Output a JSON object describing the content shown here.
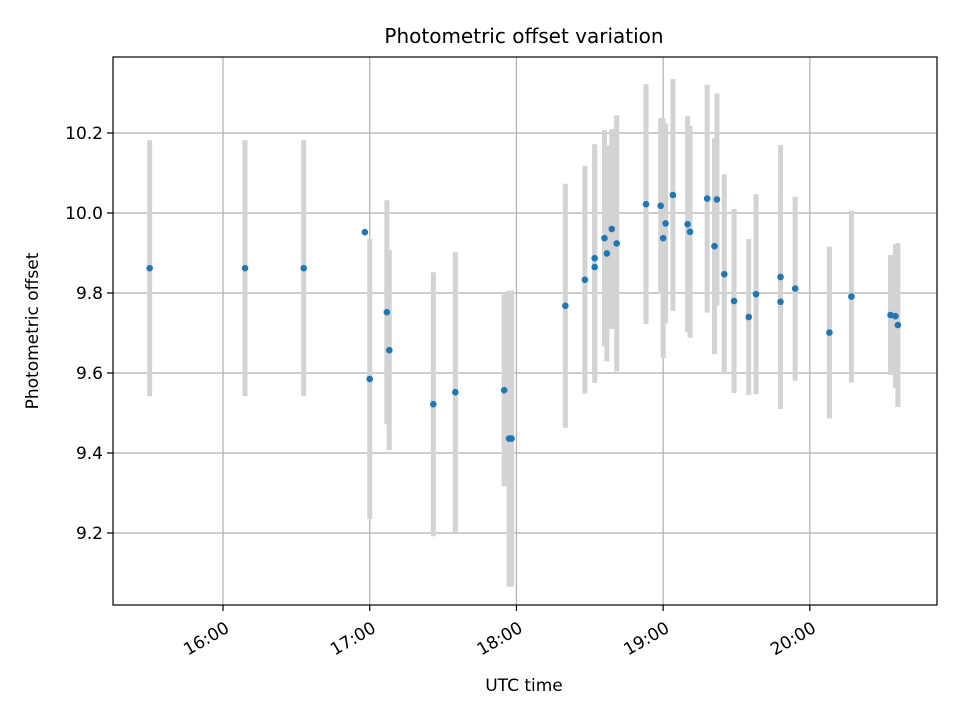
{
  "chart_data": {
    "type": "scatter",
    "title": "Photometric offset variation",
    "xlabel": "UTC time",
    "ylabel": "Photometric offset",
    "x_unit": "hours UTC",
    "xlim": [
      "15:15",
      "20:52"
    ],
    "ylim": [
      9.02,
      10.39
    ],
    "x_ticks": [
      "16:00",
      "17:00",
      "18:00",
      "19:00",
      "20:00"
    ],
    "y_ticks": [
      "9.2",
      "9.4",
      "9.6",
      "9.8",
      "10.0",
      "10.2"
    ],
    "grid": true,
    "marker_color": "#1f77b4",
    "errorbar_color": "#d3d3d3",
    "points": [
      {
        "time": "15:30",
        "y": 9.862,
        "err": 0.32
      },
      {
        "time": "16:09",
        "y": 9.862,
        "err": 0.32
      },
      {
        "time": "16:33",
        "y": 9.862,
        "err": 0.32
      },
      {
        "time": "16:58",
        "y": 9.952,
        "err": null
      },
      {
        "time": "17:00",
        "y": 9.585,
        "err": 0.35
      },
      {
        "time": "17:07",
        "y": 9.752,
        "err": 0.28
      },
      {
        "time": "17:08",
        "y": 9.657,
        "err": 0.25
      },
      {
        "time": "17:26",
        "y": 9.522,
        "err": 0.33
      },
      {
        "time": "17:35",
        "y": 9.552,
        "err": 0.35
      },
      {
        "time": "17:55",
        "y": 9.557,
        "err": 0.24
      },
      {
        "time": "17:57",
        "y": 9.436,
        "err": 0.37
      },
      {
        "time": "17:58",
        "y": 9.436,
        "err": 0.37
      },
      {
        "time": "18:20",
        "y": 9.768,
        "err": 0.305
      },
      {
        "time": "18:28",
        "y": 9.833,
        "err": 0.285
      },
      {
        "time": "18:32",
        "y": 9.865,
        "err": 0.29
      },
      {
        "time": "18:32",
        "y": 9.887,
        "err": 0.285
      },
      {
        "time": "18:36",
        "y": 9.937,
        "err": 0.27
      },
      {
        "time": "18:37",
        "y": 9.899,
        "err": 0.27
      },
      {
        "time": "18:39",
        "y": 9.96,
        "err": 0.25
      },
      {
        "time": "18:41",
        "y": 9.924,
        "err": 0.32
      },
      {
        "time": "18:53",
        "y": 10.022,
        "err": 0.3
      },
      {
        "time": "18:59",
        "y": 10.018,
        "err": 0.22
      },
      {
        "time": "19:00",
        "y": 9.937,
        "err": 0.3
      },
      {
        "time": "19:01",
        "y": 9.974,
        "err": 0.25
      },
      {
        "time": "19:04",
        "y": 10.045,
        "err": 0.29
      },
      {
        "time": "19:10",
        "y": 9.972,
        "err": 0.27
      },
      {
        "time": "19:11",
        "y": 9.953,
        "err": 0.265
      },
      {
        "time": "19:18",
        "y": 10.036,
        "err": 0.285
      },
      {
        "time": "19:21",
        "y": 9.917,
        "err": 0.27
      },
      {
        "time": "19:22",
        "y": 10.034,
        "err": 0.265
      },
      {
        "time": "19:25",
        "y": 9.847,
        "err": 0.25
      },
      {
        "time": "19:29",
        "y": 9.78,
        "err": 0.23
      },
      {
        "time": "19:35",
        "y": 9.74,
        "err": 0.195
      },
      {
        "time": "19:38",
        "y": 9.797,
        "err": 0.25
      },
      {
        "time": "19:48",
        "y": 9.84,
        "err": 0.33
      },
      {
        "time": "19:48",
        "y": 9.778,
        "err": 0.26
      },
      {
        "time": "19:54",
        "y": 9.811,
        "err": 0.23
      },
      {
        "time": "20:08",
        "y": 9.701,
        "err": 0.215
      },
      {
        "time": "20:17",
        "y": 9.791,
        "err": 0.215
      },
      {
        "time": "20:33",
        "y": 9.745,
        "err": 0.15
      },
      {
        "time": "20:35",
        "y": 9.742,
        "err": 0.18
      },
      {
        "time": "20:36",
        "y": 9.72,
        "err": 0.205
      }
    ]
  }
}
